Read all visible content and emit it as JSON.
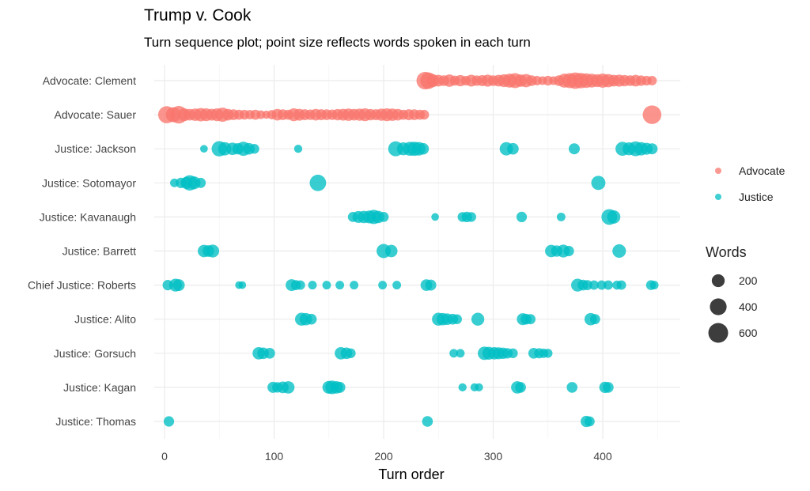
{
  "chart_data": {
    "type": "scatter",
    "title": "Trump v. Cook",
    "subtitle": "Turn sequence plot; point size reflects words spoken in each turn",
    "xlabel": "Turn order",
    "ylabel": "",
    "xlim": [
      -10,
      470
    ],
    "xticks": [
      "0",
      "100",
      "200",
      "300",
      "400"
    ],
    "xtick_values": [
      0,
      100,
      200,
      300,
      400
    ],
    "grid": true,
    "categories": [
      "Advocate: Clement",
      "Advocate: Sauer",
      "Justice: Jackson",
      "Justice: Sotomayor",
      "Justice: Kavanaugh",
      "Justice: Barrett",
      "Chief Justice: Roberts",
      "Justice: Alito",
      "Justice: Gorsuch",
      "Justice: Kagan",
      "Justice: Thomas"
    ],
    "color_legend": {
      "title": "",
      "position": "right",
      "entries": [
        {
          "label": "Advocate",
          "color": "#F8766D"
        },
        {
          "label": "Justice",
          "color": "#00BFC4"
        }
      ]
    },
    "size_legend": {
      "title": "Words",
      "position": "right",
      "entries": [
        {
          "label": "200",
          "value": 200
        },
        {
          "label": "400",
          "value": 400
        },
        {
          "label": "600",
          "value": 600
        }
      ]
    },
    "series": [
      {
        "name": "Advocate: Clement",
        "group": "Advocate",
        "points": [
          [
            238,
            450
          ],
          [
            241,
            380
          ],
          [
            245,
            200
          ],
          [
            250,
            150
          ],
          [
            255,
            120
          ],
          [
            260,
            180
          ],
          [
            265,
            100
          ],
          [
            270,
            140
          ],
          [
            275,
            90
          ],
          [
            280,
            160
          ],
          [
            285,
            110
          ],
          [
            290,
            130
          ],
          [
            295,
            170
          ],
          [
            300,
            120
          ],
          [
            305,
            150
          ],
          [
            310,
            200
          ],
          [
            315,
            250
          ],
          [
            320,
            300
          ],
          [
            325,
            180
          ],
          [
            330,
            220
          ],
          [
            335,
            120
          ],
          [
            340,
            80
          ],
          [
            345,
            60
          ],
          [
            350,
            90
          ],
          [
            355,
            60
          ],
          [
            360,
            120
          ],
          [
            365,
            250
          ],
          [
            370,
            300
          ],
          [
            375,
            380
          ],
          [
            380,
            320
          ],
          [
            385,
            280
          ],
          [
            390,
            240
          ],
          [
            395,
            200
          ],
          [
            400,
            260
          ],
          [
            405,
            220
          ],
          [
            410,
            150
          ],
          [
            415,
            170
          ],
          [
            420,
            140
          ],
          [
            425,
            120
          ],
          [
            430,
            150
          ],
          [
            435,
            110
          ],
          [
            440,
            90
          ],
          [
            445,
            80
          ]
        ]
      },
      {
        "name": "Advocate: Sauer",
        "group": "Advocate",
        "points": [
          [
            2,
            420
          ],
          [
            8,
            300
          ],
          [
            13,
            450
          ],
          [
            18,
            200
          ],
          [
            23,
            150
          ],
          [
            28,
            180
          ],
          [
            33,
            220
          ],
          [
            38,
            200
          ],
          [
            43,
            160
          ],
          [
            48,
            200
          ],
          [
            53,
            260
          ],
          [
            58,
            150
          ],
          [
            63,
            120
          ],
          [
            68,
            100
          ],
          [
            73,
            90
          ],
          [
            78,
            80
          ],
          [
            83,
            100
          ],
          [
            88,
            60
          ],
          [
            93,
            50
          ],
          [
            98,
            80
          ],
          [
            103,
            150
          ],
          [
            108,
            120
          ],
          [
            113,
            100
          ],
          [
            118,
            200
          ],
          [
            123,
            160
          ],
          [
            128,
            130
          ],
          [
            133,
            110
          ],
          [
            138,
            150
          ],
          [
            143,
            130
          ],
          [
            148,
            120
          ],
          [
            153,
            110
          ],
          [
            158,
            140
          ],
          [
            163,
            160
          ],
          [
            168,
            180
          ],
          [
            173,
            150
          ],
          [
            178,
            170
          ],
          [
            183,
            200
          ],
          [
            188,
            140
          ],
          [
            193,
            130
          ],
          [
            198,
            170
          ],
          [
            203,
            200
          ],
          [
            208,
            180
          ],
          [
            213,
            150
          ],
          [
            218,
            100
          ],
          [
            223,
            130
          ],
          [
            228,
            120
          ],
          [
            233,
            100
          ],
          [
            237,
            90
          ],
          [
            445,
            520
          ]
        ]
      },
      {
        "name": "Justice: Jackson",
        "group": "Justice",
        "points": [
          [
            36,
            40
          ],
          [
            50,
            320
          ],
          [
            55,
            220
          ],
          [
            62,
            180
          ],
          [
            67,
            140
          ],
          [
            72,
            260
          ],
          [
            77,
            150
          ],
          [
            82,
            90
          ],
          [
            122,
            50
          ],
          [
            211,
            300
          ],
          [
            218,
            200
          ],
          [
            224,
            250
          ],
          [
            228,
            260
          ],
          [
            232,
            230
          ],
          [
            236,
            150
          ],
          [
            312,
            220
          ],
          [
            318,
            150
          ],
          [
            374,
            130
          ],
          [
            418,
            250
          ],
          [
            424,
            200
          ],
          [
            430,
            290
          ],
          [
            435,
            220
          ],
          [
            440,
            160
          ],
          [
            445,
            130
          ]
        ]
      },
      {
        "name": "Justice: Sotomayor",
        "group": "Justice",
        "points": [
          [
            9,
            60
          ],
          [
            15,
            110
          ],
          [
            20,
            160
          ],
          [
            23,
            320
          ],
          [
            27,
            200
          ],
          [
            33,
            100
          ],
          [
            140,
            380
          ],
          [
            396,
            260
          ]
        ]
      },
      {
        "name": "Justice: Kavanaugh",
        "group": "Justice",
        "points": [
          [
            172,
            100
          ],
          [
            177,
            160
          ],
          [
            182,
            180
          ],
          [
            187,
            200
          ],
          [
            191,
            260
          ],
          [
            195,
            180
          ],
          [
            200,
            100
          ],
          [
            247,
            40
          ],
          [
            272,
            90
          ],
          [
            276,
            110
          ],
          [
            280,
            90
          ],
          [
            326,
            110
          ],
          [
            362,
            60
          ],
          [
            406,
            340
          ],
          [
            410,
            220
          ]
        ]
      },
      {
        "name": "Justice: Barrett",
        "group": "Justice",
        "points": [
          [
            36,
            180
          ],
          [
            40,
            150
          ],
          [
            44,
            200
          ],
          [
            200,
            260
          ],
          [
            207,
            180
          ],
          [
            353,
            180
          ],
          [
            358,
            140
          ],
          [
            364,
            200
          ],
          [
            369,
            110
          ],
          [
            415,
            230
          ]
        ]
      },
      {
        "name": "Chief Justice: Roberts",
        "group": "Justice",
        "points": [
          [
            3,
            110
          ],
          [
            10,
            200
          ],
          [
            13,
            160
          ],
          [
            68,
            40
          ],
          [
            71,
            40
          ],
          [
            116,
            160
          ],
          [
            120,
            100
          ],
          [
            124,
            80
          ],
          [
            135,
            60
          ],
          [
            148,
            60
          ],
          [
            160,
            60
          ],
          [
            173,
            60
          ],
          [
            199,
            60
          ],
          [
            212,
            60
          ],
          [
            239,
            150
          ],
          [
            243,
            130
          ],
          [
            377,
            200
          ],
          [
            382,
            120
          ],
          [
            386,
            100
          ],
          [
            392,
            80
          ],
          [
            399,
            80
          ],
          [
            405,
            80
          ],
          [
            413,
            70
          ],
          [
            417,
            80
          ],
          [
            444,
            90
          ],
          [
            447,
            60
          ]
        ]
      },
      {
        "name": "Justice: Alito",
        "group": "Justice",
        "points": [
          [
            125,
            200
          ],
          [
            129,
            180
          ],
          [
            134,
            120
          ],
          [
            250,
            200
          ],
          [
            254,
            180
          ],
          [
            258,
            150
          ],
          [
            263,
            120
          ],
          [
            267,
            90
          ],
          [
            286,
            200
          ],
          [
            327,
            160
          ],
          [
            330,
            120
          ],
          [
            334,
            100
          ],
          [
            389,
            180
          ],
          [
            393,
            100
          ]
        ]
      },
      {
        "name": "Justice: Gorsuch",
        "group": "Justice",
        "points": [
          [
            86,
            180
          ],
          [
            90,
            150
          ],
          [
            96,
            120
          ],
          [
            161,
            180
          ],
          [
            166,
            150
          ],
          [
            170,
            90
          ],
          [
            264,
            60
          ],
          [
            270,
            60
          ],
          [
            292,
            220
          ],
          [
            296,
            200
          ],
          [
            301,
            180
          ],
          [
            305,
            160
          ],
          [
            309,
            140
          ],
          [
            313,
            110
          ],
          [
            318,
            90
          ],
          [
            337,
            120
          ],
          [
            342,
            100
          ],
          [
            346,
            80
          ],
          [
            350,
            70
          ]
        ]
      },
      {
        "name": "Justice: Kagan",
        "group": "Justice",
        "points": [
          [
            99,
            130
          ],
          [
            103,
            110
          ],
          [
            108,
            150
          ],
          [
            113,
            180
          ],
          [
            150,
            200
          ],
          [
            153,
            230
          ],
          [
            157,
            180
          ],
          [
            160,
            130
          ],
          [
            272,
            50
          ],
          [
            283,
            50
          ],
          [
            287,
            50
          ],
          [
            322,
            180
          ],
          [
            325,
            120
          ],
          [
            372,
            120
          ],
          [
            402,
            140
          ],
          [
            405,
            120
          ]
        ]
      },
      {
        "name": "Justice: Thomas",
        "group": "Justice",
        "points": [
          [
            4,
            110
          ],
          [
            240,
            120
          ],
          [
            385,
            140
          ],
          [
            388,
            100
          ]
        ]
      }
    ]
  }
}
